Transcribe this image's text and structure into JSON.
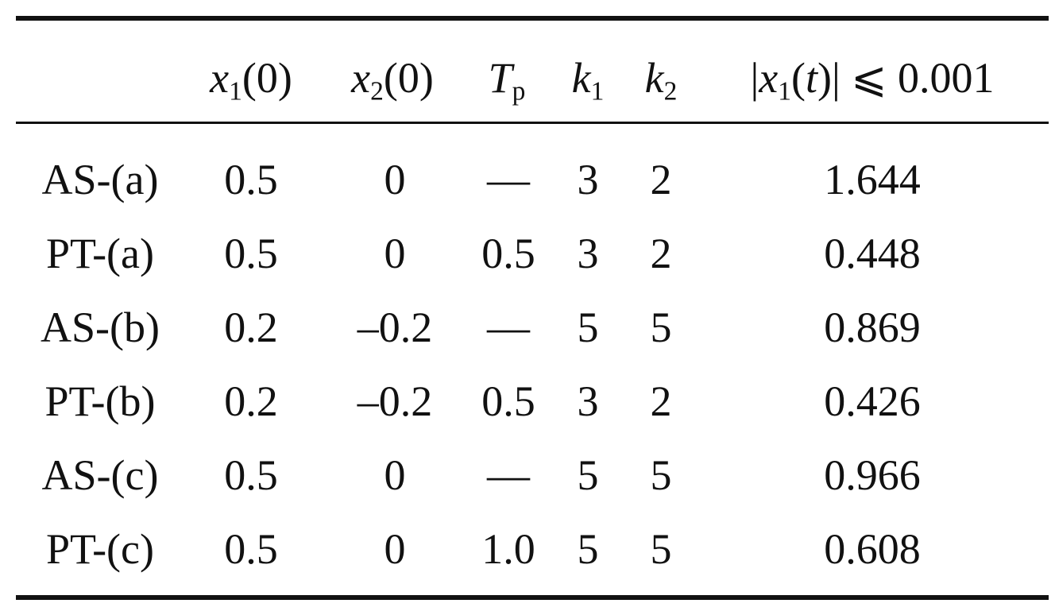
{
  "table": {
    "headers": [
      {
        "base": "x",
        "sub": "1",
        "rest": "(0)"
      },
      {
        "base": "x",
        "sub": "2",
        "rest": "(0)"
      },
      {
        "base": "T",
        "sub": "p",
        "rest": ""
      },
      {
        "base": "k",
        "sub": "1",
        "rest": ""
      },
      {
        "base": "k",
        "sub": "2",
        "rest": ""
      },
      {
        "pre": "|",
        "base": "x",
        "sub": "1",
        "mid": "(",
        "var": "t",
        "rest": ")| ⩽ 0.001"
      }
    ],
    "rows": [
      [
        "AS-(a)",
        "0.5",
        "0",
        "—",
        "3",
        "2",
        "1.644"
      ],
      [
        "PT-(a)",
        "0.5",
        "0",
        "0.5",
        "3",
        "2",
        "0.448"
      ],
      [
        "AS-(b)",
        "0.2",
        "–0.2",
        "—",
        "5",
        "5",
        "0.869"
      ],
      [
        "PT-(b)",
        "0.2",
        "–0.2",
        "0.5",
        "3",
        "2",
        "0.426"
      ],
      [
        "AS-(c)",
        "0.5",
        "0",
        "—",
        "5",
        "5",
        "0.966"
      ],
      [
        "PT-(c)",
        "0.5",
        "0",
        "1.0",
        "5",
        "5",
        "0.608"
      ]
    ]
  }
}
